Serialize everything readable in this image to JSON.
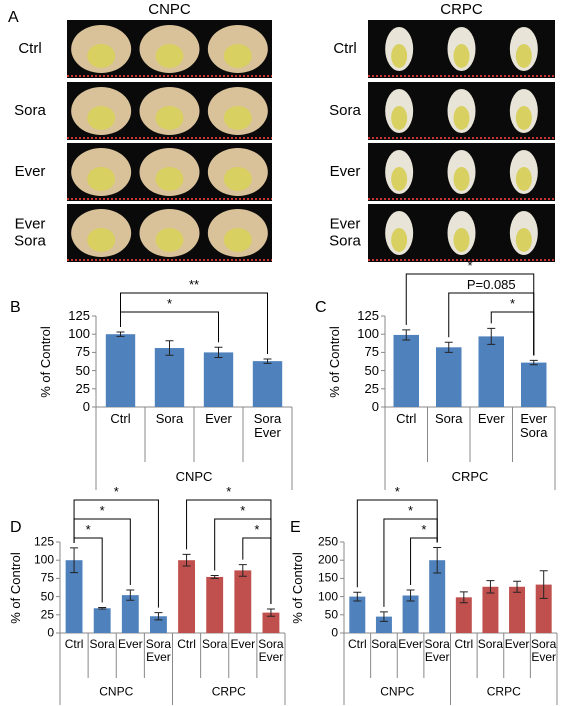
{
  "panel_a": {
    "label": "A",
    "columns": [
      {
        "title": "CNPC",
        "rows": [
          "Ctrl",
          "Sora",
          "Ever",
          "Ever Sora"
        ]
      },
      {
        "title": "CRPC",
        "rows": [
          "Ctrl",
          "Sora",
          "Ever",
          "Ever Sora"
        ]
      }
    ]
  },
  "chart_data": [
    {
      "type": "bar",
      "panel": "B",
      "y_label": "% of Control",
      "categories": [
        "Ctrl",
        "Sora",
        "Ever",
        "Sora Ever"
      ],
      "series": [
        {
          "name": "CNPC",
          "color": "#4f81bd",
          "values": [
            100,
            81,
            75,
            63
          ],
          "errors": [
            3,
            10,
            7,
            3
          ]
        }
      ],
      "ylim": [
        0,
        125
      ],
      "yticks": [
        0,
        25,
        50,
        75,
        100,
        125
      ],
      "brackets": [
        {
          "between": [
            0,
            2
          ],
          "label": "*"
        },
        {
          "between": [
            0,
            3
          ],
          "label": "**"
        }
      ]
    },
    {
      "type": "bar",
      "panel": "C",
      "y_label": "% of Control",
      "categories": [
        "Ctrl",
        "Sora",
        "Ever",
        "Ever Sora"
      ],
      "series": [
        {
          "name": "CRPC",
          "color": "#4f81bd",
          "values": [
            99,
            82,
            97,
            61
          ],
          "errors": [
            7,
            7,
            11,
            3
          ]
        }
      ],
      "ylim": [
        0,
        125
      ],
      "yticks": [
        0,
        25,
        50,
        75,
        100,
        125
      ],
      "brackets": [
        {
          "between": [
            2,
            3
          ],
          "label": "*"
        },
        {
          "between": [
            1,
            3
          ],
          "label": "P=0.085"
        },
        {
          "between": [
            0,
            3
          ],
          "label": "*"
        }
      ]
    },
    {
      "type": "bar",
      "panel": "D",
      "y_label": "% of Control",
      "categories": [
        "Ctrl",
        "Sora",
        "Ever",
        "Sora Ever"
      ],
      "series": [
        {
          "name": "CNPC",
          "color": "#4f81bd",
          "values": [
            100,
            34,
            52,
            23
          ],
          "errors": [
            17,
            1,
            7,
            5
          ]
        },
        {
          "name": "CRPC",
          "color": "#c0504d",
          "values": [
            100,
            77,
            86,
            28
          ],
          "errors": [
            8,
            2,
            8,
            5
          ]
        }
      ],
      "ylim": [
        0,
        125
      ],
      "yticks": [
        0,
        25,
        50,
        75,
        100,
        125
      ],
      "brackets": [
        {
          "between": [
            0,
            1
          ],
          "label": "*"
        },
        {
          "between": [
            0,
            2
          ],
          "label": "*"
        },
        {
          "between": [
            0,
            3
          ],
          "label": "*"
        },
        {
          "between": [
            6,
            7
          ],
          "label": "*"
        },
        {
          "between": [
            5,
            7
          ],
          "label": "*"
        },
        {
          "between": [
            4,
            7
          ],
          "label": "*"
        }
      ]
    },
    {
      "type": "bar",
      "panel": "E",
      "y_label": "% of Control",
      "categories": [
        "Ctrl",
        "Sora",
        "Ever",
        "Sora Ever"
      ],
      "series": [
        {
          "name": "CNPC",
          "color": "#4f81bd",
          "values": [
            100,
            45,
            103,
            200
          ],
          "errors": [
            12,
            13,
            15,
            35
          ]
        },
        {
          "name": "CRPC",
          "color": "#c0504d",
          "values": [
            98,
            127,
            127,
            133
          ],
          "errors": [
            15,
            17,
            15,
            38
          ]
        }
      ],
      "ylim": [
        0,
        250
      ],
      "yticks": [
        0,
        50,
        100,
        150,
        200,
        250
      ],
      "brackets": [
        {
          "between": [
            2,
            3
          ],
          "label": "*"
        },
        {
          "between": [
            1,
            3
          ],
          "label": "*"
        },
        {
          "between": [
            0,
            3
          ],
          "label": "*"
        }
      ]
    }
  ]
}
